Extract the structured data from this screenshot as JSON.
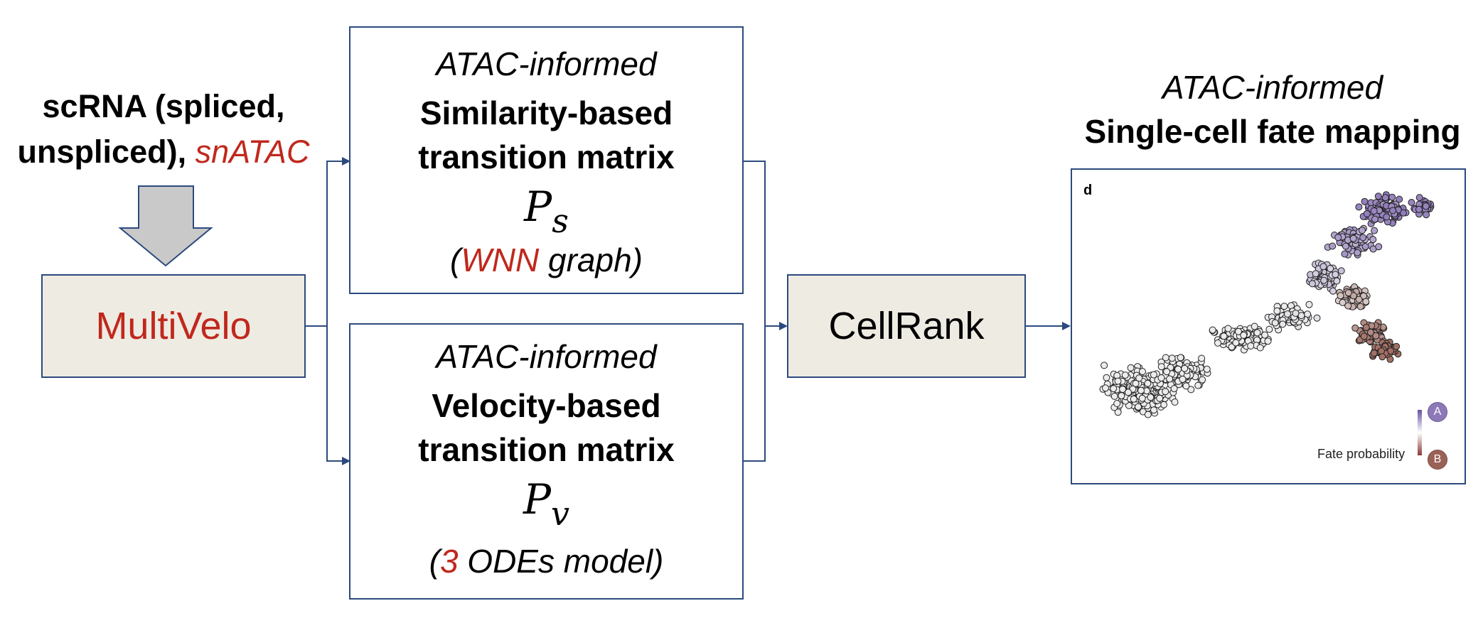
{
  "input": {
    "line1": "scRNA (spliced,",
    "line2_prefix": "unspliced), ",
    "line2_highlight": "snATAC"
  },
  "multivelo": {
    "label": "MultiVelo"
  },
  "similarity": {
    "qualifier": "ATAC-informed",
    "title_line1": "Similarity-based",
    "title_line2": "transition matrix",
    "symbol": "P",
    "subscript": "s",
    "note_open": "(",
    "note_highlight": "WNN",
    "note_rest": " graph)"
  },
  "velocity": {
    "qualifier": "ATAC-informed",
    "title_line1": "Velocity-based",
    "title_line2": "transition matrix",
    "symbol": "P",
    "subscript": "v",
    "note_open": "(",
    "note_highlight": "3",
    "note_rest": " ODEs model)"
  },
  "cellrank": {
    "label": "CellRank"
  },
  "output": {
    "qualifier": "ATAC-informed",
    "title": "Single-cell fate mapping",
    "panel_letter": "d",
    "legend_label": "Fate probability",
    "state_a": "A",
    "state_b": "B",
    "colors": {
      "state_a": "#8d78b8",
      "state_b": "#9a6257",
      "neutral": "#ececec"
    }
  },
  "colors": {
    "accent_red": "#c0281c",
    "box_fill": "#eeebe3",
    "border": "#2c4a7e",
    "arrow": "#2c4a7e",
    "down_arrow_fill": "#c9c9c9"
  }
}
